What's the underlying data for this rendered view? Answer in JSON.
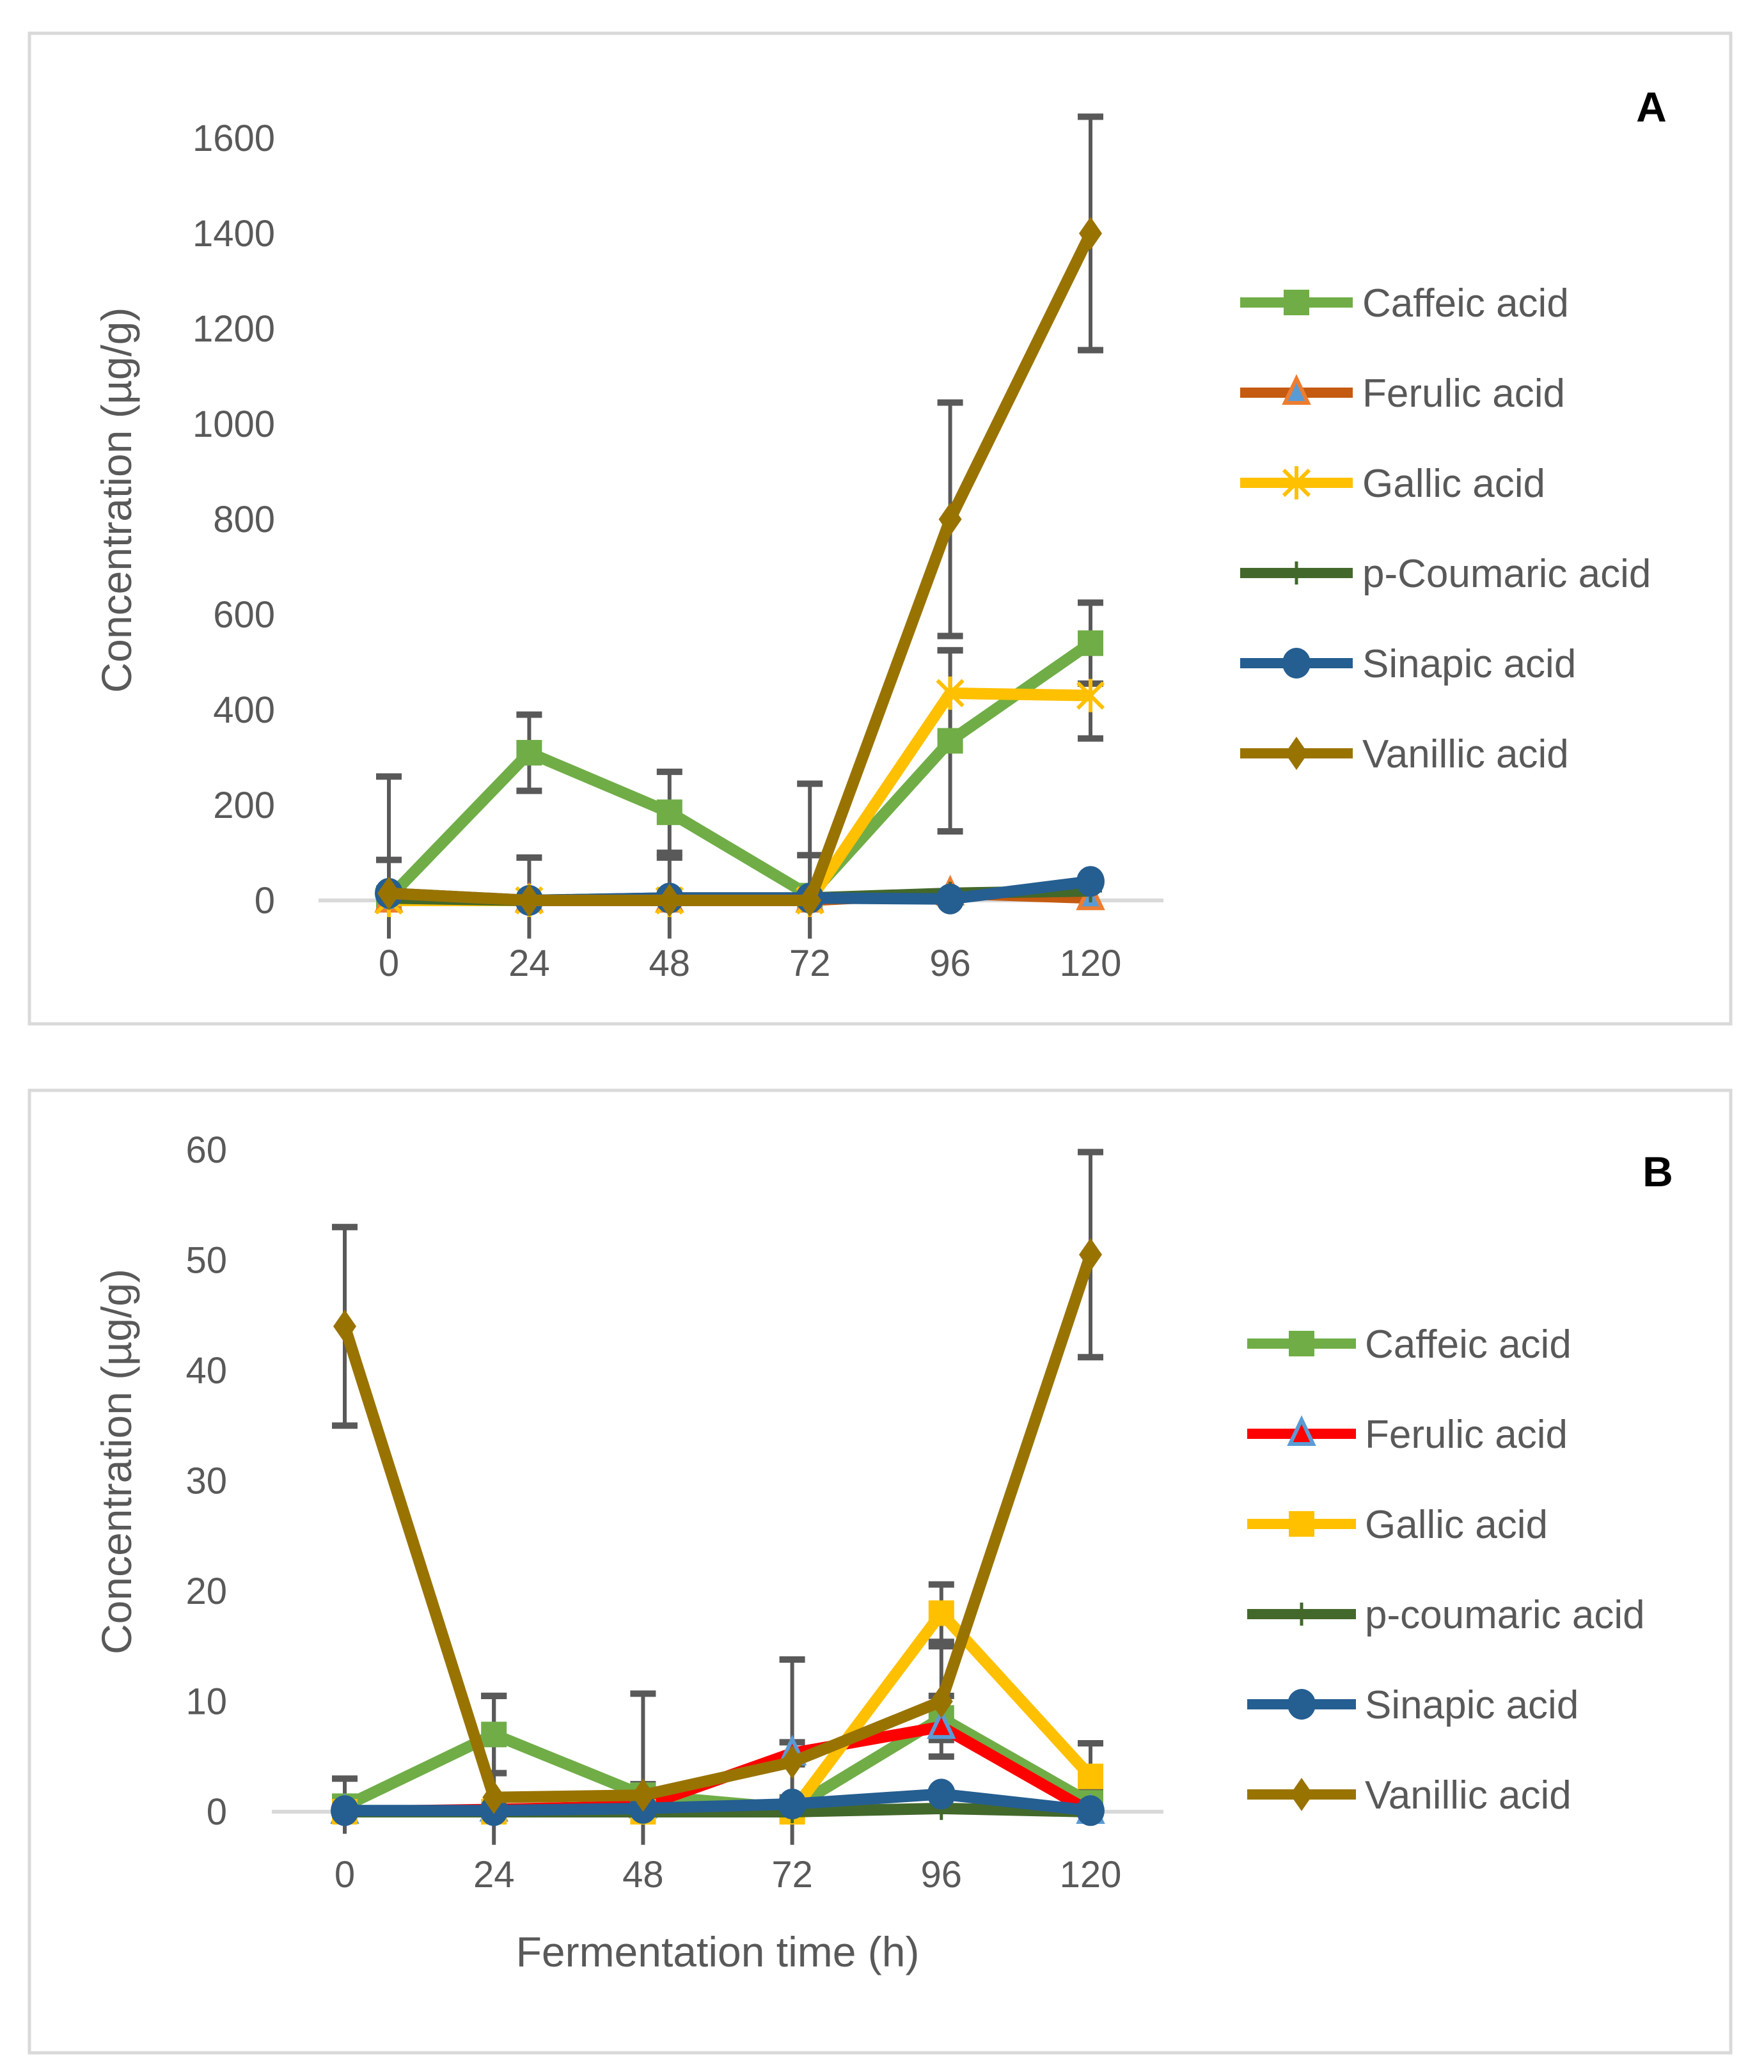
{
  "chart_data": [
    {
      "type": "line",
      "panel_label": "A",
      "xlabel": "",
      "ylabel": "Concentration (µg/g)",
      "x": [
        0,
        24,
        48,
        72,
        96,
        120
      ],
      "x_tick_labels": [
        "0",
        "24",
        "48",
        "72",
        "96",
        "120"
      ],
      "ylim": [
        0,
        1600
      ],
      "y_ticks": [
        0,
        200,
        400,
        600,
        800,
        1000,
        1200,
        1400,
        1600
      ],
      "grid": false,
      "legend_position": "right",
      "series": [
        {
          "name": "Caffeic acid",
          "color": "#70AD47",
          "marker": "square",
          "values": [
            5,
            310,
            185,
            10,
            335,
            540
          ],
          "errors": [
            255,
            80,
            85,
            235,
            190,
            85
          ]
        },
        {
          "name": "Ferulic acid",
          "color": "#C55A11",
          "marker": "triangle",
          "marker_fill": "#5B9BD5",
          "marker_stroke": "#ED7D31",
          "values": [
            0,
            0,
            0,
            0,
            15,
            5
          ],
          "errors": [
            0,
            0,
            0,
            0,
            0,
            0
          ]
        },
        {
          "name": "Gallic acid",
          "color": "#FFC000",
          "marker": "asterisk",
          "values": [
            0,
            0,
            0,
            0,
            435,
            430
          ],
          "errors": [
            0,
            0,
            0,
            0,
            90,
            90
          ]
        },
        {
          "name": "p-Coumaric acid",
          "color": "#43682B",
          "marker": "plus",
          "values": [
            5,
            0,
            5,
            5,
            15,
            20
          ],
          "errors": [
            0,
            0,
            0,
            0,
            0,
            0
          ]
        },
        {
          "name": "Sinapic acid",
          "color": "#255E91",
          "marker": "circle",
          "values": [
            15,
            0,
            5,
            5,
            3,
            40
          ],
          "errors": [
            0,
            0,
            0,
            0,
            0,
            0
          ]
        },
        {
          "name": "Vanillic acid",
          "color": "#997300",
          "marker": "diamond",
          "values": [
            15,
            0,
            0,
            0,
            800,
            1400
          ],
          "errors": [
            70,
            90,
            90,
            95,
            245,
            245
          ]
        }
      ]
    },
    {
      "type": "line",
      "panel_label": "B",
      "xlabel": "Fermentation time (h)",
      "ylabel": "Concentration (µg/g)",
      "x": [
        0,
        24,
        48,
        72,
        96,
        120
      ],
      "x_tick_labels": [
        "0",
        "24",
        "48",
        "72",
        "96",
        "120"
      ],
      "ylim": [
        0,
        60
      ],
      "y_ticks": [
        0,
        10,
        20,
        30,
        40,
        50,
        60
      ],
      "grid": false,
      "legend_position": "right",
      "series": [
        {
          "name": "Caffeic acid",
          "color": "#70AD47",
          "marker": "square",
          "values": [
            0.5,
            7,
            1.5,
            0.3,
            8.5,
            0.8
          ],
          "errors": [
            2.5,
            3.5,
            1,
            1,
            2,
            1
          ]
        },
        {
          "name": "Ferulic acid",
          "color": "#FF0000",
          "marker": "triangle",
          "marker_fill": "#FF0000",
          "marker_stroke": "#5B9BD5",
          "values": [
            0,
            0.2,
            0.5,
            5.3,
            7.7,
            0
          ],
          "errors": [
            0,
            0,
            0,
            1,
            0,
            0
          ]
        },
        {
          "name": "Gallic acid",
          "color": "#FFC000",
          "marker": "square",
          "values": [
            0,
            0,
            0,
            0,
            18,
            3.2
          ],
          "errors": [
            0,
            0,
            0,
            0,
            2.6,
            3
          ]
        },
        {
          "name": "p-coumaric acid",
          "color": "#43682B",
          "marker": "plus",
          "values": [
            0,
            0,
            0,
            0,
            0.3,
            0
          ],
          "errors": [
            0,
            0,
            0,
            0,
            0,
            0
          ]
        },
        {
          "name": "Sinapic acid",
          "color": "#255E91",
          "marker": "circle",
          "values": [
            0.1,
            0.1,
            0.3,
            0.7,
            1.6,
            0.1
          ],
          "errors": [
            0,
            0,
            0,
            0,
            0,
            0
          ]
        },
        {
          "name": "Vanillic acid",
          "color": "#997300",
          "marker": "diamond",
          "values": [
            44,
            1.3,
            1.5,
            4.5,
            10,
            50.5
          ],
          "errors": [
            9,
            9.2,
            9.2,
            9.3,
            5,
            9.3
          ]
        }
      ]
    }
  ]
}
